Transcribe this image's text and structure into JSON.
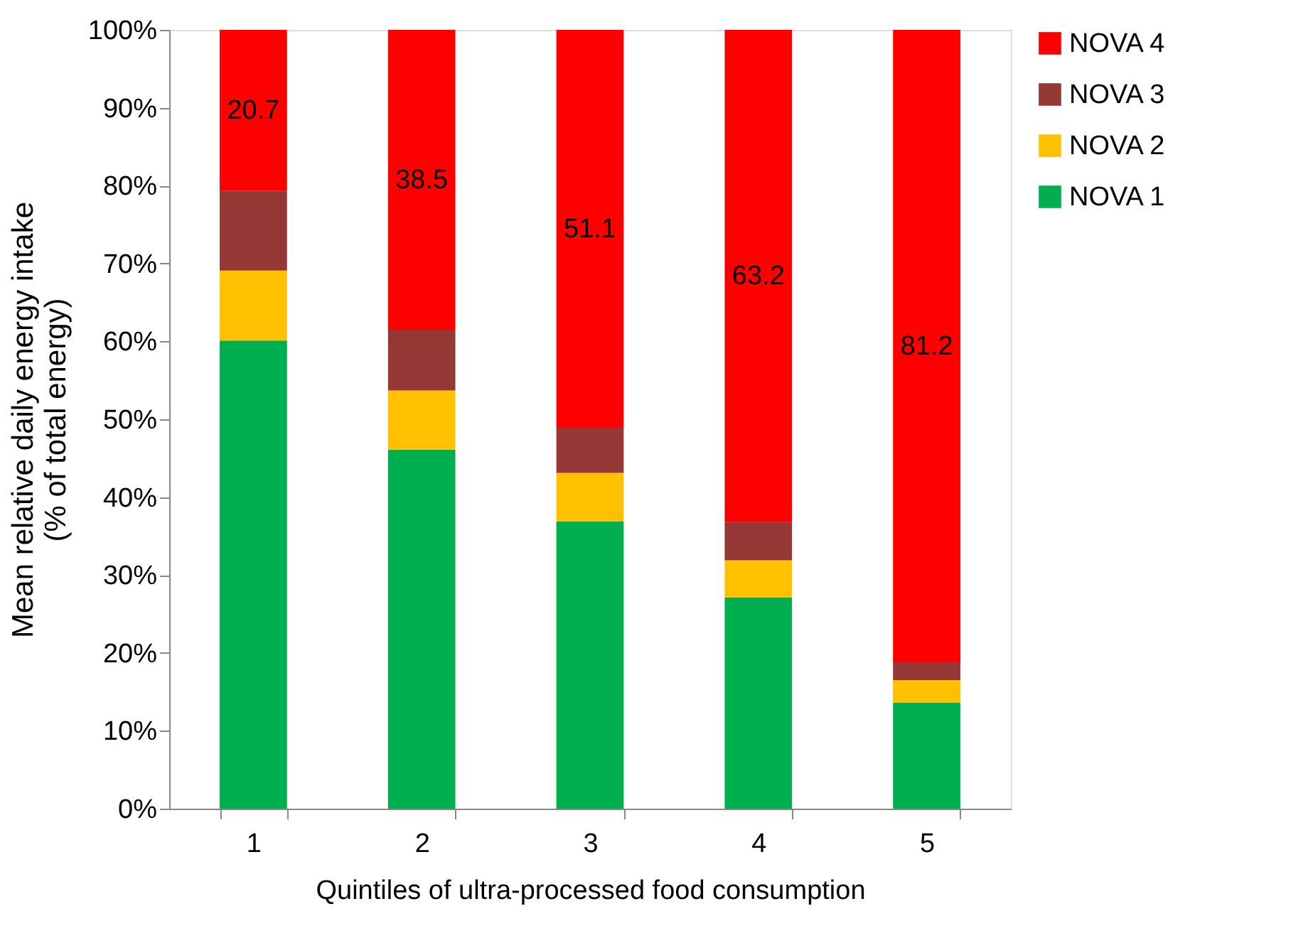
{
  "chart_data": {
    "type": "bar",
    "stacked": true,
    "xlabel": "Quintiles of ultra-processed food consumption",
    "ylabel": "Mean relative daily energy intake\n(% of total energy)",
    "categories": [
      "1",
      "2",
      "3",
      "4",
      "5"
    ],
    "series": [
      {
        "name": "NOVA 1",
        "color": "#00b050",
        "values": [
          60.1,
          46.1,
          36.9,
          27.1,
          13.6
        ]
      },
      {
        "name": "NOVA 2",
        "color": "#ffc000",
        "values": [
          9.0,
          7.6,
          6.2,
          4.8,
          2.9
        ]
      },
      {
        "name": "NOVA 3",
        "color": "#953735",
        "values": [
          10.2,
          7.8,
          5.8,
          4.9,
          2.3
        ]
      },
      {
        "name": "NOVA 4",
        "color": "#ff0000",
        "values": [
          20.7,
          38.5,
          51.1,
          63.2,
          81.2
        ],
        "value_labels": [
          "20.7",
          "38.5",
          "51.1",
          "63.2",
          "81.2"
        ]
      }
    ],
    "ylim": [
      0,
      100
    ],
    "yticks": [
      {
        "value": 0,
        "label": "0%"
      },
      {
        "value": 10,
        "label": "10%"
      },
      {
        "value": 20,
        "label": "20%"
      },
      {
        "value": 30,
        "label": "30%"
      },
      {
        "value": 40,
        "label": "40%"
      },
      {
        "value": 50,
        "label": "50%"
      },
      {
        "value": 60,
        "label": "60%"
      },
      {
        "value": 70,
        "label": "70%"
      },
      {
        "value": 80,
        "label": "80%"
      },
      {
        "value": 90,
        "label": "90%"
      },
      {
        "value": 100,
        "label": "100%"
      }
    ],
    "grid": false,
    "legend": "right"
  }
}
